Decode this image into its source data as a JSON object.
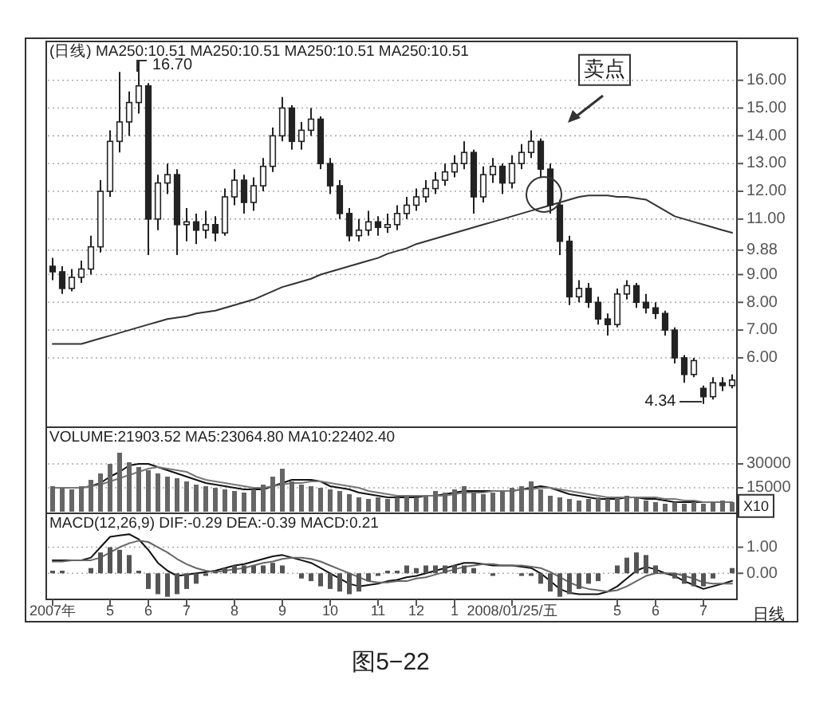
{
  "chart_data": [
    {
      "type": "candlestick",
      "title": "(日线) MA250:10.51 MA250:10.51 MA250:10.51 MA250:10.51",
      "color": "#222222",
      "categories": [
        null,
        null,
        null,
        null,
        null,
        null,
        null,
        null,
        null,
        null,
        null,
        null,
        null,
        null,
        null,
        null,
        null,
        null,
        null,
        null,
        null,
        null,
        null,
        null,
        null,
        null,
        null,
        null,
        null,
        null,
        null,
        null,
        null,
        null,
        null,
        null,
        null,
        null,
        null,
        null,
        null,
        null,
        null,
        null,
        null,
        null,
        null,
        null,
        null,
        null,
        null,
        null,
        null,
        null,
        null,
        null,
        null,
        null,
        null,
        null,
        null,
        null,
        null,
        null,
        null,
        null,
        null,
        null,
        null,
        null,
        null,
        null
      ],
      "ohlc": [
        [
          9.3,
          9.6,
          8.8,
          9.1
        ],
        [
          9.1,
          9.3,
          8.3,
          8.5
        ],
        [
          8.5,
          9.2,
          8.4,
          8.9
        ],
        [
          8.9,
          9.5,
          8.7,
          9.2
        ],
        [
          9.2,
          10.4,
          9.0,
          10.0
        ],
        [
          10.0,
          12.4,
          9.8,
          12.0
        ],
        [
          12.0,
          14.2,
          11.8,
          13.8
        ],
        [
          13.8,
          16.3,
          13.4,
          14.5
        ],
        [
          14.5,
          15.6,
          14.0,
          15.2
        ],
        [
          15.2,
          16.7,
          14.8,
          15.8
        ],
        [
          15.8,
          15.9,
          9.7,
          11.0
        ],
        [
          11.0,
          12.6,
          10.6,
          12.3
        ],
        [
          12.3,
          13.0,
          11.9,
          12.6
        ],
        [
          12.6,
          12.8,
          9.7,
          10.8
        ],
        [
          10.8,
          11.4,
          10.2,
          10.9
        ],
        [
          10.9,
          11.2,
          10.1,
          10.6
        ],
        [
          10.6,
          11.3,
          10.3,
          10.8
        ],
        [
          10.8,
          11.1,
          10.2,
          10.5
        ],
        [
          10.5,
          12.1,
          10.4,
          11.8
        ],
        [
          11.8,
          12.8,
          11.5,
          12.4
        ],
        [
          12.4,
          12.6,
          11.2,
          11.6
        ],
        [
          11.6,
          12.5,
          11.3,
          12.2
        ],
        [
          12.2,
          13.2,
          12.0,
          12.9
        ],
        [
          12.9,
          14.3,
          12.7,
          14.0
        ],
        [
          14.0,
          15.4,
          13.8,
          15.0
        ],
        [
          15.0,
          15.1,
          13.5,
          13.8
        ],
        [
          13.8,
          14.5,
          13.5,
          14.2
        ],
        [
          14.2,
          15.0,
          14.0,
          14.6
        ],
        [
          14.6,
          14.7,
          12.8,
          13.0
        ],
        [
          13.0,
          13.2,
          11.9,
          12.2
        ],
        [
          12.2,
          12.4,
          11.0,
          11.2
        ],
        [
          11.2,
          11.4,
          10.2,
          10.4
        ],
        [
          10.4,
          11.0,
          10.2,
          10.6
        ],
        [
          10.6,
          11.3,
          10.4,
          10.9
        ],
        [
          10.9,
          11.1,
          10.4,
          10.7
        ],
        [
          10.7,
          11.2,
          10.5,
          10.8
        ],
        [
          10.8,
          11.5,
          10.6,
          11.2
        ],
        [
          11.2,
          11.8,
          11.0,
          11.5
        ],
        [
          11.5,
          12.1,
          11.3,
          11.8
        ],
        [
          11.8,
          12.4,
          11.6,
          12.1
        ],
        [
          12.1,
          12.7,
          11.9,
          12.4
        ],
        [
          12.4,
          13.0,
          12.2,
          12.7
        ],
        [
          12.7,
          13.3,
          12.5,
          13.0
        ],
        [
          13.0,
          13.8,
          12.8,
          13.4
        ],
        [
          13.4,
          13.5,
          11.2,
          11.8
        ],
        [
          11.8,
          12.9,
          11.6,
          12.6
        ],
        [
          12.6,
          13.2,
          12.3,
          12.9
        ],
        [
          12.9,
          13.0,
          11.9,
          12.3
        ],
        [
          12.3,
          13.3,
          12.1,
          13.0
        ],
        [
          13.0,
          13.7,
          12.8,
          13.4
        ],
        [
          13.4,
          14.2,
          13.2,
          13.8
        ],
        [
          13.8,
          13.9,
          12.5,
          12.8
        ],
        [
          12.8,
          13.0,
          11.2,
          11.5
        ],
        [
          11.5,
          11.7,
          9.7,
          10.2
        ],
        [
          10.2,
          10.4,
          7.9,
          8.2
        ],
        [
          8.2,
          8.8,
          8.0,
          8.5
        ],
        [
          8.5,
          8.7,
          7.8,
          8.0
        ],
        [
          8.0,
          8.2,
          7.2,
          7.4
        ],
        [
          7.4,
          7.6,
          6.8,
          7.2
        ],
        [
          7.2,
          8.5,
          7.1,
          8.3
        ],
        [
          8.3,
          8.8,
          8.1,
          8.6
        ],
        [
          8.6,
          8.7,
          7.8,
          8.0
        ],
        [
          8.0,
          8.3,
          7.6,
          7.8
        ],
        [
          7.8,
          8.0,
          7.4,
          7.6
        ],
        [
          7.6,
          7.7,
          6.8,
          7.0
        ],
        [
          7.0,
          7.1,
          5.8,
          6.0
        ],
        [
          6.0,
          6.1,
          5.1,
          5.4
        ],
        [
          5.4,
          6.0,
          5.3,
          5.9
        ],
        [
          4.9,
          5.0,
          4.34,
          4.6
        ],
        [
          4.6,
          5.3,
          4.5,
          5.1
        ],
        [
          5.1,
          5.3,
          4.8,
          5.0
        ],
        [
          5.0,
          5.4,
          4.9,
          5.2
        ]
      ],
      "series": [
        {
          "type": "line",
          "color": "#333333",
          "values": [
            6.5,
            6.5,
            6.5,
            6.5,
            6.6,
            6.7,
            6.8,
            6.9,
            7.0,
            7.1,
            7.2,
            7.3,
            7.4,
            7.45,
            7.5,
            7.6,
            7.65,
            7.7,
            7.8,
            7.9,
            8.0,
            8.1,
            8.25,
            8.4,
            8.55,
            8.65,
            8.75,
            8.85,
            9.0,
            9.1,
            9.2,
            9.3,
            9.4,
            9.5,
            9.6,
            9.75,
            9.85,
            9.95,
            10.1,
            10.2,
            10.3,
            10.4,
            10.5,
            10.6,
            10.7,
            10.8,
            10.9,
            11.0,
            11.1,
            11.2,
            11.3,
            11.4,
            11.5,
            11.6,
            11.7,
            11.8,
            11.85,
            11.85,
            11.85,
            11.8,
            11.8,
            11.75,
            11.7,
            11.5,
            11.3,
            11.1,
            11.0,
            10.9,
            10.8,
            10.7,
            10.6,
            10.51
          ]
        }
      ],
      "ylim": [
        3.5,
        17.4
      ],
      "yticks": [
        {
          "value": 16,
          "label": "16.00"
        },
        {
          "value": 15,
          "label": "15.00"
        },
        {
          "value": 14,
          "label": "14.00"
        },
        {
          "value": 13,
          "label": "13.00"
        },
        {
          "value": 12,
          "label": "12.00"
        },
        {
          "value": 11,
          "label": "11.00"
        },
        {
          "value": 9.88,
          "label": "9.88"
        },
        {
          "value": 9,
          "label": "9.00"
        },
        {
          "value": 8,
          "label": "8.00"
        },
        {
          "value": 7,
          "label": "7.00"
        },
        {
          "value": 6,
          "label": "6.00"
        }
      ],
      "grid": "y",
      "tick_labels": "y",
      "annotations": [
        "16.70",
        "4.34",
        "卖点"
      ]
    },
    {
      "type": "bar",
      "title": "VOLUME:21903.52 MA5:23064.80 MA10:22402.40",
      "categories": [
        null,
        null,
        null,
        null,
        null,
        null,
        null,
        null,
        null,
        null,
        null,
        null,
        null,
        null,
        null,
        null,
        null,
        null,
        null,
        null,
        null,
        null,
        null,
        null,
        null,
        null,
        null,
        null,
        null,
        null,
        null,
        null,
        null,
        null,
        null,
        null,
        null,
        null,
        null,
        null,
        null,
        null,
        null,
        null,
        null,
        null,
        null,
        null,
        null,
        null,
        null,
        null,
        null,
        null,
        null,
        null,
        null,
        null,
        null,
        null,
        null,
        null,
        null,
        null,
        null,
        null,
        null,
        null,
        null,
        null,
        null,
        null
      ],
      "series": [
        {
          "type": "bar",
          "color": "#666666",
          "values": [
            16000,
            15000,
            14000,
            16000,
            20000,
            24000,
            30000,
            37000,
            31000,
            28000,
            26000,
            24000,
            22000,
            21000,
            19000,
            17000,
            16000,
            15000,
            14000,
            13000,
            12000,
            14000,
            17000,
            22000,
            27000,
            19000,
            17000,
            16000,
            15000,
            14000,
            13000,
            11000,
            9000,
            8000,
            9000,
            8000,
            9000,
            10000,
            9000,
            10000,
            13000,
            12000,
            14000,
            16000,
            12000,
            11000,
            12000,
            13000,
            15000,
            16000,
            19000,
            14000,
            10000,
            9000,
            8000,
            7000,
            8000,
            9000,
            8000,
            9000,
            10000,
            9000,
            7000,
            6000,
            5000,
            6000,
            5000,
            6000,
            5000,
            6000,
            7000,
            6000
          ]
        },
        {
          "type": "line",
          "color": "#111111",
          "values": [
            15000,
            15000,
            15000,
            15000,
            16000,
            18000,
            22000,
            25000,
            29000,
            30000,
            30000,
            28000,
            26000,
            24000,
            22000,
            20000,
            18000,
            17000,
            16000,
            15000,
            14000,
            14000,
            14000,
            16000,
            18000,
            20000,
            20000,
            20000,
            19000,
            16000,
            15000,
            14000,
            12000,
            11000,
            10000,
            9000,
            9000,
            9000,
            9000,
            10000,
            10000,
            11000,
            12000,
            13000,
            13000,
            13000,
            13000,
            13000,
            13000,
            14000,
            15000,
            16000,
            15000,
            13000,
            11000,
            10000,
            9000,
            8000,
            8000,
            8000,
            9000,
            9000,
            8000,
            8000,
            7000,
            6000,
            6000,
            6000,
            6000,
            6000,
            6000,
            6000
          ]
        },
        {
          "type": "line",
          "color": "#777777",
          "values": [
            15000,
            15000,
            15000,
            15000,
            16000,
            17000,
            19000,
            21000,
            23000,
            25000,
            27000,
            28000,
            27000,
            26000,
            25000,
            22000,
            20000,
            19000,
            18000,
            17000,
            16000,
            15000,
            15000,
            16000,
            17000,
            18000,
            18000,
            19000,
            19000,
            18000,
            17000,
            16000,
            15000,
            13000,
            12000,
            11000,
            10000,
            10000,
            10000,
            10000,
            10000,
            10000,
            11000,
            12000,
            12000,
            12000,
            13000,
            13000,
            13000,
            14000,
            14000,
            15000,
            15000,
            14000,
            13000,
            12000,
            11000,
            10000,
            9000,
            9000,
            9000,
            9000,
            9000,
            9000,
            8000,
            8000,
            7000,
            7000,
            6000,
            6000,
            6000,
            6000
          ]
        }
      ],
      "ylim": [
        -1000,
        53000
      ],
      "yticks": [
        30000,
        15000
      ],
      "grid": "y",
      "tick_labels": "y",
      "annotations": [
        "X10"
      ]
    },
    {
      "type": "bar",
      "title": "MACD(12,26,9) DIF:-0.29 DEA:-0.39 MACD:0.21",
      "categories": [
        "2007年",
        null,
        null,
        null,
        null,
        null,
        "5",
        null,
        null,
        null,
        "6",
        null,
        null,
        null,
        "7",
        null,
        null,
        null,
        null,
        "8",
        null,
        null,
        null,
        null,
        "9",
        null,
        null,
        null,
        null,
        "10",
        null,
        null,
        null,
        null,
        "11",
        null,
        null,
        null,
        "12",
        null,
        null,
        null,
        "1",
        null,
        null,
        null,
        null,
        null,
        "2008/01/25/五",
        null,
        null,
        null,
        null,
        null,
        null,
        null,
        null,
        null,
        null,
        "5",
        null,
        null,
        null,
        "6",
        null,
        null,
        null,
        null,
        "7",
        null,
        null,
        null
      ],
      "series": [
        {
          "type": "bar",
          "color": "#555555",
          "values": [
            0.1,
            0.1,
            0,
            0,
            0.2,
            0.8,
            1.0,
            0.9,
            0.7,
            0.1,
            -0.6,
            -0.8,
            -0.9,
            -0.8,
            -0.6,
            -0.4,
            -0.1,
            0.1,
            0.2,
            0.3,
            0.3,
            0.3,
            0.3,
            0.4,
            0.3,
            0,
            -0.2,
            -0.3,
            -0.5,
            -0.6,
            -0.7,
            -0.8,
            -0.7,
            -0.3,
            -0.1,
            0.1,
            0.1,
            0.3,
            0.2,
            0.3,
            0.3,
            0.3,
            0.3,
            0.3,
            0.2,
            0,
            -0.1,
            0,
            0,
            -0.1,
            -0.1,
            -0.4,
            -0.7,
            -0.9,
            -0.8,
            -0.6,
            -0.4,
            -0.3,
            0,
            0.3,
            0.6,
            0.8,
            0.7,
            0.3,
            0,
            -0.2,
            -0.4,
            -0.5,
            -0.5,
            -0.2,
            0,
            0.2
          ]
        },
        {
          "type": "line",
          "color": "#111111",
          "values": [
            0.5,
            0.5,
            0.5,
            0.5,
            0.6,
            1.0,
            1.4,
            1.45,
            1.5,
            1.3,
            0.9,
            0.4,
            0.1,
            -0.1,
            -0.05,
            0,
            0.05,
            0.1,
            0.2,
            0.3,
            0.35,
            0.45,
            0.55,
            0.65,
            0.7,
            0.6,
            0.5,
            0.4,
            0.2,
            0,
            -0.2,
            -0.4,
            -0.5,
            -0.45,
            -0.4,
            -0.3,
            -0.25,
            -0.15,
            -0.1,
            0,
            0.1,
            0.2,
            0.3,
            0.4,
            0.4,
            0.35,
            0.3,
            0.3,
            0.3,
            0.25,
            0.2,
            0,
            -0.3,
            -0.6,
            -0.75,
            -0.8,
            -0.8,
            -0.8,
            -0.7,
            -0.5,
            -0.2,
            0.1,
            0.25,
            0.15,
            0,
            -0.1,
            -0.3,
            -0.45,
            -0.6,
            -0.5,
            -0.4,
            -0.29
          ]
        },
        {
          "type": "line",
          "color": "#666666",
          "values": [
            0.45,
            0.45,
            0.5,
            0.5,
            0.5,
            0.6,
            0.8,
            1.0,
            1.15,
            1.25,
            1.2,
            1.0,
            0.8,
            0.55,
            0.35,
            0.2,
            0.1,
            0.05,
            0.1,
            0.15,
            0.2,
            0.3,
            0.4,
            0.45,
            0.55,
            0.6,
            0.6,
            0.55,
            0.45,
            0.3,
            0.15,
            0,
            -0.15,
            -0.3,
            -0.35,
            -0.35,
            -0.3,
            -0.3,
            -0.2,
            -0.15,
            -0.05,
            0.05,
            0.15,
            0.25,
            0.3,
            0.35,
            0.35,
            0.3,
            0.3,
            0.3,
            0.25,
            0.2,
            0.05,
            -0.15,
            -0.35,
            -0.5,
            -0.6,
            -0.65,
            -0.7,
            -0.65,
            -0.5,
            -0.3,
            -0.1,
            0,
            0,
            0,
            -0.1,
            -0.2,
            -0.35,
            -0.4,
            -0.4,
            -0.4
          ]
        }
      ],
      "ylim": [
        -1.0,
        2.3
      ],
      "yticks": [
        {
          "value": 1,
          "label": "1.00"
        },
        {
          "value": 0,
          "label": "0.00"
        }
      ],
      "grid": "y",
      "annotations": [
        "日线",
        "图5−22"
      ]
    }
  ]
}
